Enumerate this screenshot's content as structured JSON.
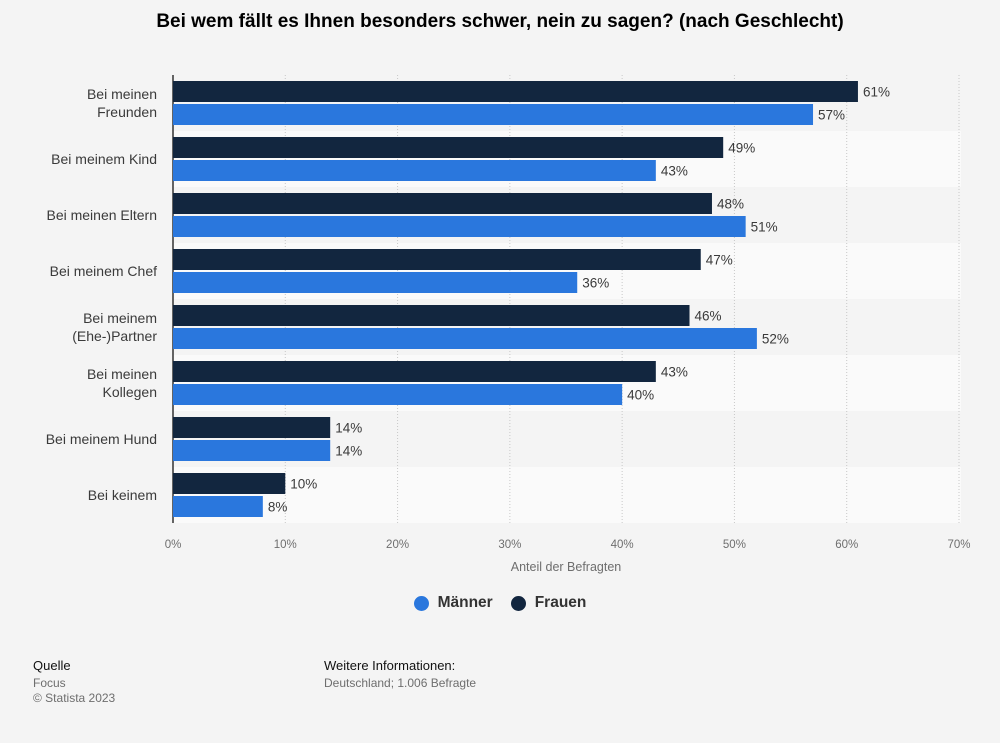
{
  "chart_data": {
    "type": "bar",
    "orientation": "horizontal",
    "title": "Bei wem fällt es Ihnen besonders schwer, nein zu sagen? (nach Geschlecht)",
    "xlabel": "Anteil der Befragten",
    "ylabel": "",
    "xlim": [
      0,
      70
    ],
    "ticks": [
      "0%",
      "10%",
      "20%",
      "30%",
      "40%",
      "50%",
      "60%",
      "70%"
    ],
    "grid": true,
    "legend_position": "bottom",
    "categories": [
      [
        "Bei meinen",
        "Freunden"
      ],
      [
        "Bei meinem Kind"
      ],
      [
        "Bei meinen Eltern"
      ],
      [
        "Bei meinem Chef"
      ],
      [
        "Bei meinem",
        "(Ehe-)Partner"
      ],
      [
        "Bei meinen",
        "Kollegen"
      ],
      [
        "Bei meinem Hund"
      ],
      [
        "Bei keinem"
      ]
    ],
    "series": [
      {
        "name": "Frauen",
        "color": "#12263f",
        "values": [
          61,
          49,
          48,
          47,
          46,
          43,
          14,
          10
        ],
        "labels": [
          "61%",
          "49%",
          "48%",
          "47%",
          "46%",
          "43%",
          "14%",
          "10%"
        ]
      },
      {
        "name": "Männer",
        "color": "#2a77dd",
        "values": [
          57,
          43,
          51,
          36,
          52,
          40,
          14,
          8
        ],
        "labels": [
          "57%",
          "43%",
          "51%",
          "36%",
          "52%",
          "40%",
          "14%",
          "8%"
        ]
      }
    ]
  },
  "legend": [
    {
      "name": "Männer",
      "color": "#2a77dd"
    },
    {
      "name": "Frauen",
      "color": "#12263f"
    }
  ],
  "footer": {
    "source_heading": "Quelle",
    "source_name": "Focus",
    "copyright": "© Statista 2023",
    "info_heading": "Weitere Informationen:",
    "info_text": "Deutschland; 1.006 Befragte"
  }
}
